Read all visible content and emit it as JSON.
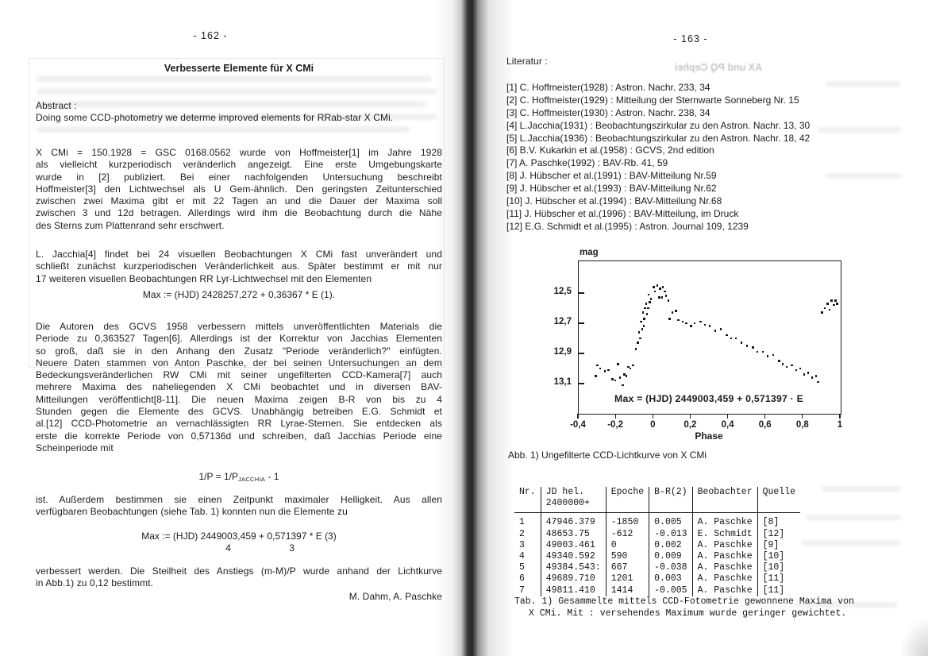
{
  "page_left": {
    "page_number": "- 162 -",
    "title": "Verbesserte Elemente für X CMi",
    "abstract_label": "Abstract :",
    "abstract_lines": [
      "Doing some CCD-photometry we determe improved elements for RRab-star X CMi."
    ],
    "para1_lines": [
      "X CMi = 150.1928 = GSC 0168.0562 wurde von Hoffmeister[1] im Jahre 1928",
      "als vielleicht kurzperiodisch veränderlich angezeigt. Eine erste Umgebungskarte",
      "wurde in [2] publiziert. Bei einer nachfolgenden Untersuchung beschreibt",
      "Hoffmeister[3] den Lichtwechsel als U Gem-ähnlich. Den geringsten Zeitunterschied",
      "zwischen zwei Maxima gibt er mit 22 Tagen an und die Dauer der Maxima soll",
      "zwischen 3 und 12d betragen. Allerdings wird ihm die Beobachtung durch die Nähe",
      "des Sterns zum Plattenrand sehr erschwert."
    ],
    "para2_lines": [
      "L. Jacchia[4] findet bei 24 visuellen Beobachtungen X CMi fast unverändert und",
      "schließt zunächst kurzperiodischen Veränderlichkeit aus. Später bestimmt er mit nur",
      "17 weiteren visuellen Beobachtungen RR Lyr-Lichtwechsel mit den Elementen"
    ],
    "equation1": "Max := (HJD) 2428257,272 + 0,36367 * E (1).",
    "para3_lines": [
      "Die Autoren des GCVS 1958 verbessern mittels unveröffentlichten Materials die",
      "Periode zu 0,363527 Tagen[6]. Allerdings ist der Korrektur von Jacchias Elementen",
      "so groß, daß sie in den Anhang den Zusatz \"Periode veränderlich?\" einfügten.",
      "Neuere Daten stammen von Anton Paschke, der bei seinen Untersuchungen an dem",
      "Bedeckungsveränderlichen RW CMi mit seiner ungefilterten CCD-Kamera[7] auch",
      "mehrere Maxima des naheliegenden X CMi beobachtet und in diversen BAV-",
      "Mitteilungen veröffentlicht[8-11]. Die neuen Maxima zeigen B-R von bis zu 4",
      "Stunden gegen die Elemente des GCVS. Unabhängig betreiben E.G. Schmidt et",
      "al.[12] CCD-Photometrie an vernachlässigten RR Lyrae-Sternen. Sie entdecken als",
      "erste die korrekte Periode von 0,57136d und schreiben, daß Jacchias Periode eine",
      "Scheinperiode mit"
    ],
    "equation2_prefix": "1/P = 1/P",
    "equation2_sub": "JACCHIA",
    "equation2_suffix": " - 1",
    "para4_lines": [
      "ist. Außerdem bestimmen sie einen Zeitpunkt maximaler Helligkeit. Aus allen",
      "verfügbaren Beobachtungen (siehe Tab. 1) konnten nun die Elemente zu"
    ],
    "equation3": "Max := (HJD) 2449003,459 + 0,571397 * E (3)",
    "equation3_err1": "4",
    "equation3_err2": "3",
    "para5_lines": [
      "verbessert werden. Die Steilheit des Anstiegs (m-M)/P wurde anhand der Lichtkurve",
      "in Abb.1) zu 0,12 bestimmt."
    ],
    "signature": "M. Dahm, A. Paschke"
  },
  "page_right": {
    "page_number": "- 163 -",
    "literature_label": "Literatur :",
    "references": [
      "[1] C. Hoffmeister(1928) : Astron. Nachr. 233, 34",
      "[2] C. Hoffmeister(1929) : Mitteilung der Sternwarte Sonneberg Nr. 15",
      "[3] C. Hoffmeister(1930) : Astron. Nachr. 238, 34",
      "[4] L.Jacchia(1931) : Beobachtungszirkular zu den Astron. Nachr. 13, 30",
      "[5] L.Jacchia(1936) : Beobachtungszirkular zu den Astron. Nachr. 18, 42",
      "[6] B.V. Kukarkin et al.(1958) : GCVS, 2nd edition",
      "[7] A. Paschke(1992) : BAV-Rb. 41, 59",
      "[8] J. Hübscher et al.(1991) : BAV-Mitteilung Nr.59",
      "[9] J. Hübscher et al.(1993) : BAV-Mitteilung Nr.62",
      "[10] J. Hübscher et al.(1994) : BAV-Mitteilung Nr.68",
      "[11] J. Hübscher et al.(1996) : BAV-Mitteilung, im Druck",
      "[12] E.G. Schmidt et al.(1995) : Astron. Journal 109, 1239"
    ],
    "ghost_title": "AX und PQ Cephei",
    "table": {
      "headers": [
        [
          "Nr."
        ],
        [
          "JD hel.",
          "2400000+"
        ],
        [
          "Epoche"
        ],
        [
          "B-R(2)"
        ],
        [
          "Beobachter"
        ],
        [
          "Quelle"
        ]
      ],
      "rows": [
        [
          "1",
          "47946.379",
          "-1850",
          "0.005",
          "A. Paschke",
          "[8]"
        ],
        [
          "2",
          "48653.75",
          "-612",
          "-0.013",
          "E. Schmidt",
          "[12]"
        ],
        [
          "3",
          "49003.461",
          "0",
          "0.002",
          "A. Paschke",
          "[9]"
        ],
        [
          "4",
          "49340.592",
          "590",
          "0.009",
          "A. Paschke",
          "[10]"
        ],
        [
          "5",
          "49384.543:",
          "667",
          "-0.038",
          "A. Paschke",
          "[10]"
        ],
        [
          "6",
          "49689.710",
          "1201",
          "0.003",
          "A. Paschke",
          "[11]"
        ],
        [
          "7",
          "49811.410",
          "1414",
          "-0.005",
          "A. Paschke",
          "[11]"
        ]
      ],
      "caption_lines": [
        "Tab. 1) Gesammelte mittels CCD-Fotometrie gewonnene Maxima von",
        "X CMi. Mit : versehendes Maximum wurde geringer gewichtet."
      ]
    }
  },
  "chart_data": {
    "type": "scatter",
    "title": "",
    "ylabel": "mag",
    "xlabel": "Phase",
    "annotation": "Max = (HJD) 2449003,459 + 0,571397 · E",
    "caption": "Abb. 1) Ungefilterte CCD-Lichtkurve von X CMi",
    "x_tick_labels": [
      "-0,4",
      "-0,2",
      "0",
      "0,2",
      "0,4",
      "0,6",
      "0,8",
      "1"
    ],
    "x_tick_values": [
      -0.4,
      -0.2,
      0,
      0.2,
      0.4,
      0.6,
      0.8,
      1
    ],
    "y_tick_labels": [
      "12,5",
      "12,7",
      "12,9",
      "13,1"
    ],
    "y_tick_values": [
      12.5,
      12.7,
      12.9,
      13.1
    ],
    "xlim": [
      -0.4,
      1.0
    ],
    "ylim": [
      12.29,
      13.3
    ],
    "y_axis_inverted_magnitudes": true,
    "grid": false,
    "points": [
      [
        -0.31,
        13.05
      ],
      [
        -0.3,
        12.98
      ],
      [
        -0.285,
        13.0
      ],
      [
        -0.26,
        13.02
      ],
      [
        -0.24,
        13.01
      ],
      [
        -0.22,
        13.07
      ],
      [
        -0.205,
        13.08
      ],
      [
        -0.19,
        12.97
      ],
      [
        -0.18,
        13.06
      ],
      [
        -0.165,
        13.11
      ],
      [
        -0.155,
        13.04
      ],
      [
        -0.145,
        13.05
      ],
      [
        -0.135,
        12.99
      ],
      [
        -0.125,
        13.0
      ],
      [
        -0.11,
        12.98
      ],
      [
        -0.095,
        12.87
      ],
      [
        -0.085,
        12.83
      ],
      [
        -0.078,
        12.76
      ],
      [
        -0.07,
        12.8
      ],
      [
        -0.068,
        12.69
      ],
      [
        -0.06,
        12.74
      ],
      [
        -0.057,
        12.63
      ],
      [
        -0.052,
        12.72
      ],
      [
        -0.05,
        12.67
      ],
      [
        -0.045,
        12.6
      ],
      [
        -0.04,
        12.57
      ],
      [
        -0.035,
        12.64
      ],
      [
        -0.03,
        12.6
      ],
      [
        -0.026,
        12.51
      ],
      [
        -0.02,
        12.56
      ],
      [
        -0.014,
        12.54
      ],
      [
        0.0,
        12.46
      ],
      [
        0.008,
        12.49
      ],
      [
        0.02,
        12.45
      ],
      [
        0.03,
        12.53
      ],
      [
        0.035,
        12.47
      ],
      [
        0.045,
        12.53
      ],
      [
        0.05,
        12.46
      ],
      [
        0.06,
        12.49
      ],
      [
        0.066,
        12.52
      ],
      [
        0.08,
        12.55
      ],
      [
        0.085,
        12.67
      ],
      [
        0.1,
        12.63
      ],
      [
        0.12,
        12.62
      ],
      [
        0.133,
        12.68
      ],
      [
        0.155,
        12.69
      ],
      [
        0.175,
        12.7
      ],
      [
        0.2,
        12.72
      ],
      [
        0.22,
        12.7
      ],
      [
        0.25,
        12.69
      ],
      [
        0.275,
        12.71
      ],
      [
        0.3,
        12.72
      ],
      [
        0.33,
        12.75
      ],
      [
        0.36,
        12.74
      ],
      [
        0.39,
        12.78
      ],
      [
        0.415,
        12.8
      ],
      [
        0.44,
        12.8
      ],
      [
        0.47,
        12.83
      ],
      [
        0.5,
        12.85
      ],
      [
        0.53,
        12.86
      ],
      [
        0.555,
        12.89
      ],
      [
        0.585,
        12.89
      ],
      [
        0.61,
        12.92
      ],
      [
        0.64,
        12.91
      ],
      [
        0.67,
        12.95
      ],
      [
        0.69,
        12.97
      ],
      [
        0.712,
        12.99
      ],
      [
        0.74,
        12.98
      ],
      [
        0.762,
        13.01
      ],
      [
        0.783,
        13.0
      ],
      [
        0.805,
        13.04
      ],
      [
        0.826,
        13.03
      ],
      [
        0.847,
        13.06
      ],
      [
        0.868,
        13.05
      ],
      [
        0.878,
        13.09
      ],
      [
        0.9,
        12.63
      ],
      [
        0.915,
        12.6
      ],
      [
        0.93,
        12.57
      ],
      [
        0.94,
        12.61
      ],
      [
        0.952,
        12.55
      ],
      [
        0.965,
        12.58
      ],
      [
        0.973,
        12.55
      ],
      [
        0.982,
        12.57
      ]
    ]
  }
}
